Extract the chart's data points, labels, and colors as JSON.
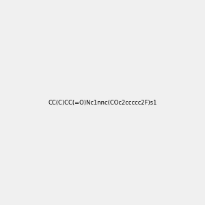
{
  "smiles": "CC(C)CC(=O)Nc1nnc(COc2ccccc2F)s1",
  "title": "",
  "background_color": "#f0f0f0",
  "bond_color": "#000000",
  "atom_colors": {
    "O": "#ff0000",
    "N": "#0000ff",
    "S": "#cccc00",
    "F": "#ff00ff",
    "C": "#000000",
    "H": "#008080"
  },
  "figsize": [
    3.0,
    3.0
  ],
  "dpi": 100
}
